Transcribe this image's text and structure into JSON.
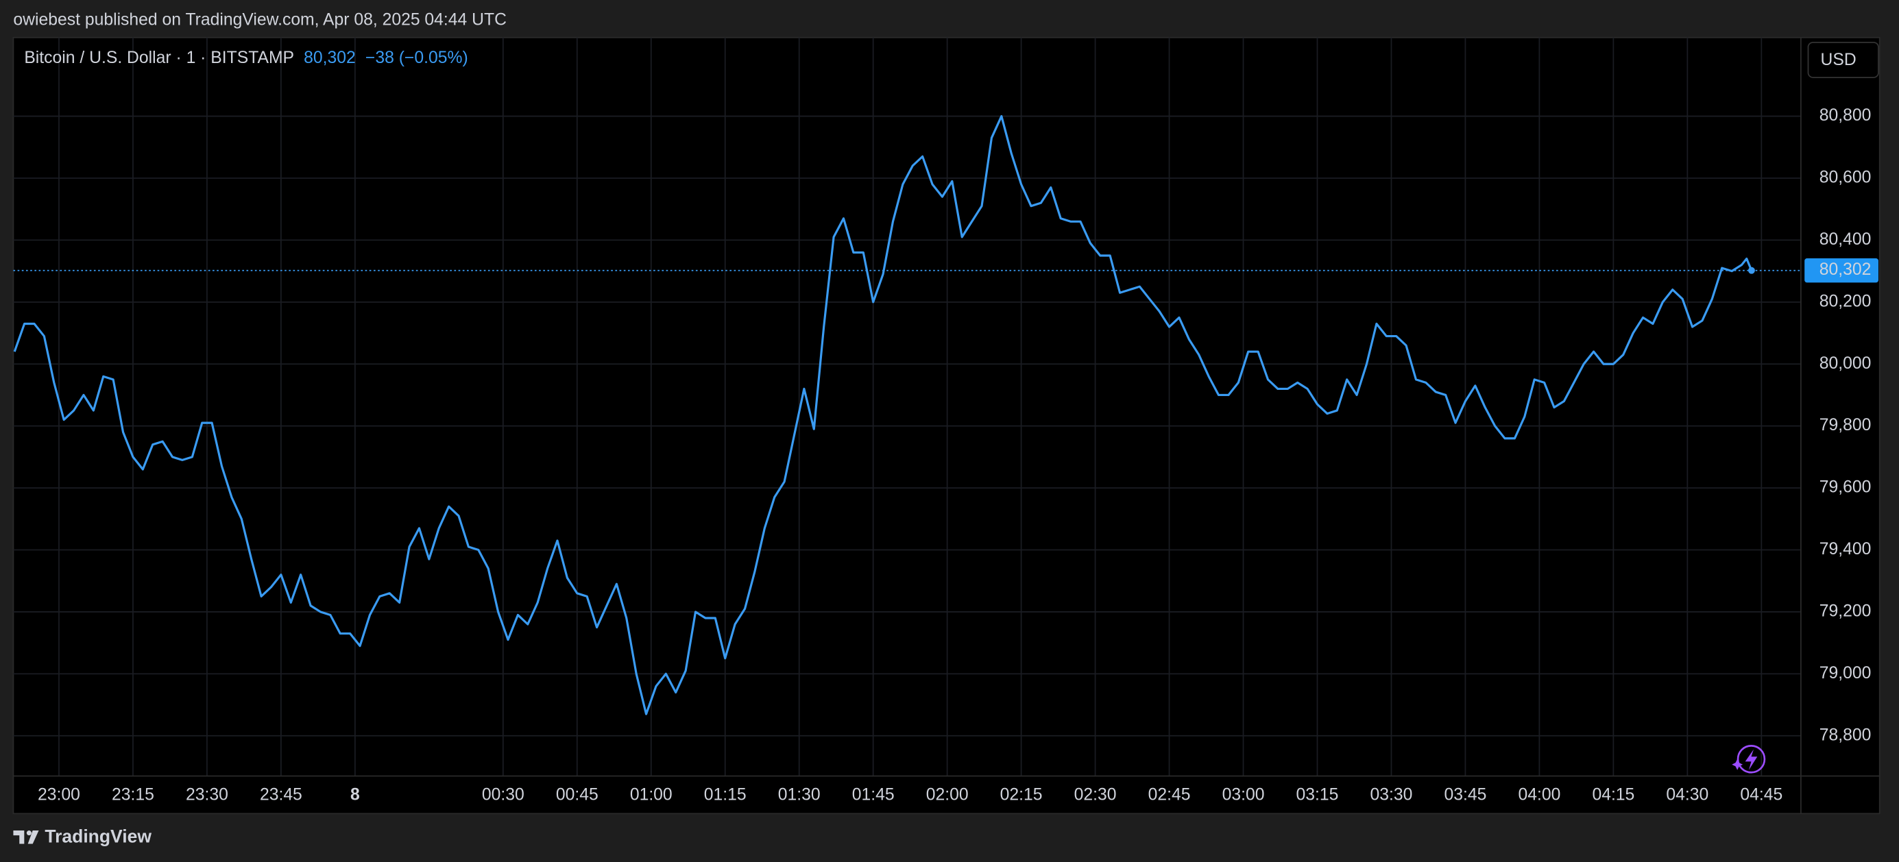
{
  "header": "owiebest published on TradingView.com, Apr 08, 2025 04:44 UTC",
  "footer_brand": "TradingView",
  "chart_data": {
    "type": "line",
    "title": "Bitcoin / U.S. Dollar · 1 · BITSTAMP",
    "legend_price": "80,302",
    "legend_change": "−38 (−0.05%)",
    "currency": "USD",
    "color": "#3a9bf2",
    "last_price": {
      "value": 80302,
      "label": "80,302"
    },
    "x": [
      "22:51",
      "22:53",
      "22:55",
      "22:57",
      "22:59",
      "23:01",
      "23:03",
      "23:05",
      "23:07",
      "23:09",
      "23:11",
      "23:13",
      "23:15",
      "23:17",
      "23:19",
      "23:21",
      "23:23",
      "23:25",
      "23:27",
      "23:29",
      "23:31",
      "23:33",
      "23:35",
      "23:37",
      "23:39",
      "23:41",
      "23:43",
      "23:45",
      "23:47",
      "23:49",
      "23:51",
      "23:53",
      "23:55",
      "23:57",
      "23:59",
      "00:01",
      "00:03",
      "00:05",
      "00:07",
      "00:09",
      "00:11",
      "00:13",
      "00:15",
      "00:17",
      "00:19",
      "00:21",
      "00:23",
      "00:25",
      "00:27",
      "00:29",
      "00:31",
      "00:33",
      "00:35",
      "00:37",
      "00:39",
      "00:41",
      "00:43",
      "00:45",
      "00:47",
      "00:49",
      "00:51",
      "00:53",
      "00:55",
      "00:57",
      "00:59",
      "01:01",
      "01:03",
      "01:05",
      "01:07",
      "01:09",
      "01:11",
      "01:13",
      "01:15",
      "01:17",
      "01:19",
      "01:21",
      "01:23",
      "01:25",
      "01:27",
      "01:29",
      "01:31",
      "01:33",
      "01:35",
      "01:37",
      "01:39",
      "01:41",
      "01:43",
      "01:45",
      "01:47",
      "01:49",
      "01:51",
      "01:53",
      "01:55",
      "01:57",
      "01:59",
      "02:01",
      "02:03",
      "02:05",
      "02:07",
      "02:09",
      "02:11",
      "02:13",
      "02:15",
      "02:17",
      "02:19",
      "02:21",
      "02:23",
      "02:25",
      "02:27",
      "02:29",
      "02:31",
      "02:33",
      "02:35",
      "02:37",
      "02:39",
      "02:41",
      "02:43",
      "02:45",
      "02:47",
      "02:49",
      "02:51",
      "02:53",
      "02:55",
      "02:57",
      "02:59",
      "03:01",
      "03:03",
      "03:05",
      "03:07",
      "03:09",
      "03:11",
      "03:13",
      "03:15",
      "03:17",
      "03:19",
      "03:21",
      "03:23",
      "03:25",
      "03:27",
      "03:29",
      "03:31",
      "03:33",
      "03:35",
      "03:37",
      "03:39",
      "03:41",
      "03:43",
      "03:45",
      "03:47",
      "03:49",
      "03:51",
      "03:53",
      "03:55",
      "03:57",
      "03:59",
      "04:01",
      "04:03",
      "04:05",
      "04:07",
      "04:09",
      "04:11",
      "04:13",
      "04:15",
      "04:17",
      "04:19",
      "04:21",
      "04:23",
      "04:25",
      "04:27",
      "04:29",
      "04:31",
      "04:33",
      "04:35",
      "04:37",
      "04:39",
      "04:41",
      "04:42",
      "04:43"
    ],
    "values": [
      80040,
      80130,
      80130,
      80090,
      79940,
      79820,
      79850,
      79900,
      79850,
      79960,
      79950,
      79780,
      79700,
      79660,
      79740,
      79750,
      79700,
      79690,
      79700,
      79810,
      79810,
      79670,
      79570,
      79500,
      79370,
      79250,
      79280,
      79320,
      79230,
      79320,
      79220,
      79200,
      79190,
      79130,
      79130,
      79090,
      79190,
      79250,
      79260,
      79230,
      79410,
      79470,
      79370,
      79470,
      79540,
      79510,
      79410,
      79400,
      79340,
      79200,
      79110,
      79190,
      79160,
      79230,
      79340,
      79430,
      79310,
      79260,
      79250,
      79150,
      79220,
      79290,
      79180,
      79000,
      78870,
      78960,
      79000,
      78940,
      79010,
      79200,
      79180,
      79180,
      79050,
      79160,
      79210,
      79330,
      79470,
      79570,
      79620,
      79770,
      79920,
      79790,
      80120,
      80410,
      80470,
      80360,
      80360,
      80200,
      80290,
      80460,
      80580,
      80640,
      80670,
      80580,
      80540,
      80590,
      80410,
      80460,
      80510,
      80730,
      80800,
      80680,
      80580,
      80510,
      80520,
      80570,
      80470,
      80460,
      80460,
      80390,
      80350,
      80350,
      80230,
      80240,
      80250,
      80210,
      80170,
      80120,
      80150,
      80080,
      80030,
      79960,
      79900,
      79900,
      79940,
      80040,
      80040,
      79950,
      79920,
      79920,
      79940,
      79920,
      79870,
      79840,
      79850,
      79950,
      79900,
      80000,
      80130,
      80090,
      80090,
      80060,
      79950,
      79940,
      79910,
      79900,
      79810,
      79880,
      79930,
      79860,
      79800,
      79760,
      79760,
      79830,
      79950,
      79940,
      79860,
      79880,
      79940,
      80000,
      80040,
      80000,
      80000,
      80030,
      80100,
      80150,
      80130,
      80200,
      80240,
      80210,
      80120,
      80140,
      80210,
      80310,
      80300,
      80320,
      80340,
      80302
    ],
    "xlim": [
      "22:51",
      "04:53"
    ],
    "ylim": [
      78670,
      81050
    ],
    "xticks": [
      "23:00",
      "23:15",
      "23:30",
      "23:45",
      {
        "value": "00:00",
        "label": "8"
      },
      "00:30",
      "00:45",
      "01:00",
      "01:15",
      "01:30",
      "01:45",
      "02:00",
      "02:15",
      "02:30",
      "02:45",
      "03:00",
      "03:15",
      "03:30",
      "03:45",
      "04:00",
      "04:15",
      "04:30",
      "04:45"
    ],
    "yticks": [
      {
        "value": 78800,
        "label": "78,800"
      },
      {
        "value": 79000,
        "label": "79,000"
      },
      {
        "value": 79200,
        "label": "79,200"
      },
      {
        "value": 79400,
        "label": "79,400"
      },
      {
        "value": 79600,
        "label": "79,600"
      },
      {
        "value": 79800,
        "label": "79,800"
      },
      {
        "value": 80000,
        "label": "80,000"
      },
      {
        "value": 80200,
        "label": "80,200"
      },
      {
        "value": 80400,
        "label": "80,400"
      },
      {
        "value": 80600,
        "label": "80,600"
      },
      {
        "value": 80800,
        "label": "80,800"
      }
    ],
    "grid": true
  }
}
